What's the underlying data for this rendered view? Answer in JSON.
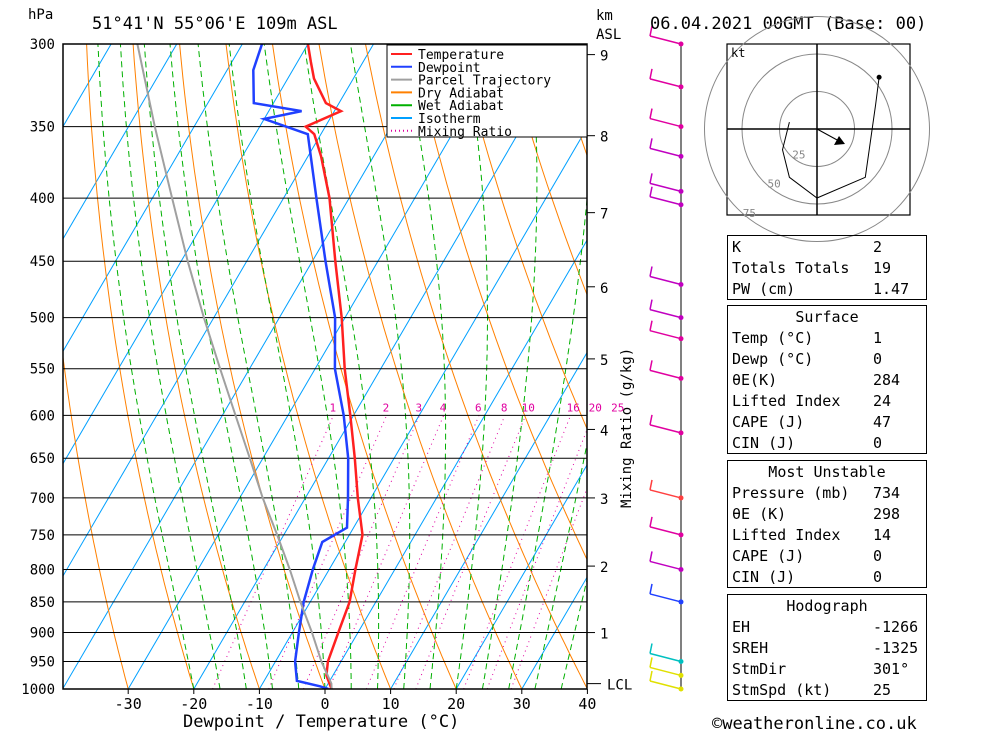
{
  "header": {
    "hpa_unit": "hPa",
    "location": "51°41'N 55°06'E 109m ASL",
    "km_unit": "km",
    "asl_unit": "ASL",
    "date": "06.04.2021 00GMT (Base: 00)"
  },
  "footer": {
    "xlabel": "Dewpoint / Temperature (°C)",
    "copyright": "©weatheronline.co.uk",
    "mixing_label": "Mixing Ratio (g/kg)"
  },
  "legend": [
    {
      "name": "Temperature",
      "color": "#ff2020"
    },
    {
      "name": "Dewpoint",
      "color": "#2040ff"
    },
    {
      "name": "Parcel Trajectory",
      "color": "#a0a0a0"
    },
    {
      "name": "Dry Adiabat",
      "color": "#ff8000"
    },
    {
      "name": "Wet Adiabat",
      "color": "#00b000"
    },
    {
      "name": "Isotherm",
      "color": "#00a0ff"
    },
    {
      "name": "Mixing Ratio",
      "color": "#e000a0"
    }
  ],
  "colors": {
    "temperature": "#ff2020",
    "dewpoint": "#2040ff",
    "parcel": "#a0a0a0",
    "dry": "#ff8000",
    "wet": "#00b000",
    "isotherm": "#00a0ff",
    "mixing": "#e000a0"
  },
  "chart_data": {
    "type": "line",
    "title": "51°41'N 55°06'E 109m ASL",
    "xlabel": "Dewpoint / Temperature (°C)",
    "ylabel": "hPa",
    "y_scale": "log",
    "ylim": [
      1000,
      300
    ],
    "xlim": [
      -40,
      40
    ],
    "x_ticks": [
      -30,
      -20,
      -10,
      0,
      10,
      20,
      30,
      40
    ],
    "pressure_levels": [
      300,
      350,
      400,
      450,
      500,
      550,
      600,
      650,
      700,
      750,
      800,
      850,
      900,
      950,
      1000
    ],
    "km_ticks": [
      {
        "label": "1",
        "p": 900
      },
      {
        "label": "2",
        "p": 795
      },
      {
        "label": "3",
        "p": 700
      },
      {
        "label": "4",
        "p": 616
      },
      {
        "label": "5",
        "p": 540
      },
      {
        "label": "6",
        "p": 472
      },
      {
        "label": "7",
        "p": 411
      },
      {
        "label": "8",
        "p": 356
      },
      {
        "label": "9",
        "p": 306
      }
    ],
    "lcl_label": "LCL",
    "lcl_p": 990,
    "mixing_ratio_labels": [
      "1",
      "2",
      "3",
      "4",
      "6",
      "8",
      "10",
      "16",
      "20",
      "25"
    ],
    "mixing_ratio_values": [
      1,
      2,
      3,
      4,
      6,
      8,
      10,
      16,
      20,
      25
    ],
    "series": [
      {
        "name": "Temperature",
        "points": [
          [
            1000,
            1
          ],
          [
            975,
            -1
          ],
          [
            950,
            -2
          ],
          [
            900,
            -3
          ],
          [
            850,
            -4
          ],
          [
            800,
            -6
          ],
          [
            750,
            -8
          ],
          [
            700,
            -12
          ],
          [
            650,
            -16
          ],
          [
            600,
            -20.5
          ],
          [
            550,
            -25.5
          ],
          [
            500,
            -30.5
          ],
          [
            450,
            -36.5
          ],
          [
            400,
            -43
          ],
          [
            370,
            -48
          ],
          [
            355,
            -51
          ],
          [
            350,
            -53
          ],
          [
            340,
            -49
          ],
          [
            335,
            -52
          ],
          [
            320,
            -56
          ],
          [
            310,
            -58
          ],
          [
            300,
            -60
          ]
        ]
      },
      {
        "name": "Dewpoint",
        "points": [
          [
            1000,
            0.5
          ],
          [
            995,
            -1
          ],
          [
            985,
            -5
          ],
          [
            950,
            -7
          ],
          [
            900,
            -9
          ],
          [
            850,
            -11
          ],
          [
            800,
            -12.5
          ],
          [
            760,
            -13.5
          ],
          [
            740,
            -11
          ],
          [
            700,
            -13.5
          ],
          [
            650,
            -17
          ],
          [
            600,
            -21.5
          ],
          [
            550,
            -27
          ],
          [
            500,
            -31.5
          ],
          [
            450,
            -38
          ],
          [
            400,
            -45
          ],
          [
            355,
            -52
          ],
          [
            345,
            -60
          ],
          [
            340,
            -55
          ],
          [
            335,
            -63
          ],
          [
            315,
            -66
          ],
          [
            300,
            -67
          ]
        ]
      },
      {
        "name": "Parcel Trajectory",
        "points": [
          [
            1000,
            1
          ],
          [
            990,
            0.5
          ],
          [
            950,
            -3
          ],
          [
            900,
            -7
          ],
          [
            850,
            -11.5
          ],
          [
            800,
            -16
          ],
          [
            750,
            -21
          ],
          [
            700,
            -26.5
          ],
          [
            650,
            -32
          ],
          [
            600,
            -38
          ],
          [
            550,
            -44.5
          ],
          [
            500,
            -51.5
          ],
          [
            450,
            -59
          ],
          [
            400,
            -67
          ],
          [
            350,
            -76
          ],
          [
            300,
            -86
          ]
        ]
      }
    ],
    "wind_barbs_note": "wind profile shown as barbs",
    "hodograph": {
      "unit_label": "kt",
      "ring_labels": [
        "25",
        "50",
        "75"
      ],
      "path": [
        [
          -8,
          2
        ],
        [
          -10,
          -6
        ],
        [
          -8,
          -14
        ],
        [
          0,
          -20
        ],
        [
          14,
          -14
        ],
        [
          17,
          7
        ],
        [
          18,
          15
        ]
      ],
      "storm_motion_dir_deg": 301,
      "storm_motion_speed_kt": 25
    }
  },
  "indices": {
    "top": [
      {
        "label": "K",
        "value": "2"
      },
      {
        "label": "Totals Totals",
        "value": "19"
      },
      {
        "label": "PW (cm)",
        "value": "1.47"
      }
    ],
    "surface_title": "Surface",
    "surface": [
      {
        "label": "Temp (°C)",
        "value": "1"
      },
      {
        "label": "Dewp (°C)",
        "value": "0"
      },
      {
        "label": "θE(K)",
        "value": "284"
      },
      {
        "label": "Lifted Index",
        "value": "24"
      },
      {
        "label": "CAPE (J)",
        "value": "47"
      },
      {
        "label": "CIN (J)",
        "value": "0"
      }
    ],
    "mu_title": "Most Unstable",
    "mu": [
      {
        "label": "Pressure (mb)",
        "value": "734"
      },
      {
        "label": "θE (K)",
        "value": "298"
      },
      {
        "label": "Lifted Index",
        "value": "14"
      },
      {
        "label": "CAPE (J)",
        "value": "0"
      },
      {
        "label": "CIN (J)",
        "value": "0"
      }
    ],
    "hodo_title": "Hodograph",
    "hodo": [
      {
        "label": "EH",
        "value": "-1266"
      },
      {
        "label": "SREH",
        "value": "-1325"
      },
      {
        "label": "StmDir",
        "value": "301°"
      },
      {
        "label": "StmSpd (kt)",
        "value": "25"
      }
    ]
  }
}
